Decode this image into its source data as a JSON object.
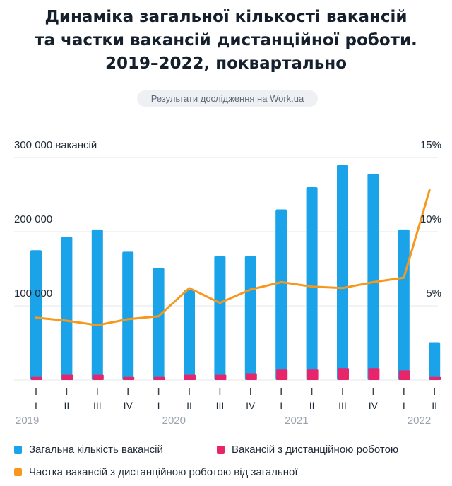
{
  "title_lines": [
    "Динаміка загальної кількості вакансій",
    "та частки вакансій дистанційної роботи.",
    "2019–2022, поквартально"
  ],
  "source_label": "Результати дослідження на Work.ua",
  "colors": {
    "total": "#1aa3e8",
    "remote": "#e8246a",
    "share": "#f7981d",
    "grid": "#e4e7eb",
    "text": "#1f2a36",
    "muted": "#9aa3ad"
  },
  "chart_data": {
    "type": "bar",
    "title": "Динаміка загальної кількості вакансій та частки вакансій дистанційної роботи. 2019–2022, поквартально",
    "categories": [
      "I",
      "II",
      "III",
      "IV",
      "I",
      "II",
      "III",
      "IV",
      "I",
      "II",
      "III",
      "IV",
      "I",
      "II"
    ],
    "years": [
      {
        "label": "2019",
        "start": 0
      },
      {
        "label": "2020",
        "start": 4
      },
      {
        "label": "2021",
        "start": 8
      },
      {
        "label": "2022",
        "start": 12
      }
    ],
    "left_axis": {
      "ylim": [
        0,
        300000
      ],
      "ticks": [
        {
          "value": 100000,
          "label": "100 000"
        },
        {
          "value": 200000,
          "label": "200 000"
        },
        {
          "value": 300000,
          "label": "300 000 вакансій"
        }
      ]
    },
    "right_axis": {
      "ylim": [
        0,
        15
      ],
      "ticks": [
        {
          "value": 5,
          "label": "5%"
        },
        {
          "value": 10,
          "label": "10%"
        },
        {
          "value": 15,
          "label": "15%"
        }
      ]
    },
    "series": [
      {
        "name": "Загальна кількість вакансій",
        "type": "bar",
        "axis": "left",
        "values": [
          175000,
          193000,
          203000,
          173000,
          151000,
          121000,
          167000,
          167000,
          230000,
          260000,
          290000,
          278000,
          203000,
          51000
        ]
      },
      {
        "name": "Вакансій з дистанційною роботою",
        "type": "bar",
        "axis": "left",
        "values": [
          5000,
          7000,
          7000,
          5000,
          5000,
          7000,
          7000,
          9000,
          14000,
          14000,
          16000,
          16000,
          13000,
          5000
        ]
      },
      {
        "name": "Частка вакансій з дистанційною роботою від загальної",
        "type": "line",
        "axis": "right",
        "values": [
          4.2,
          4.0,
          3.7,
          4.1,
          4.3,
          6.2,
          5.2,
          6.1,
          6.6,
          6.3,
          6.2,
          6.6,
          6.9,
          12.8
        ]
      }
    ],
    "grid": true,
    "legend": "bottom"
  }
}
